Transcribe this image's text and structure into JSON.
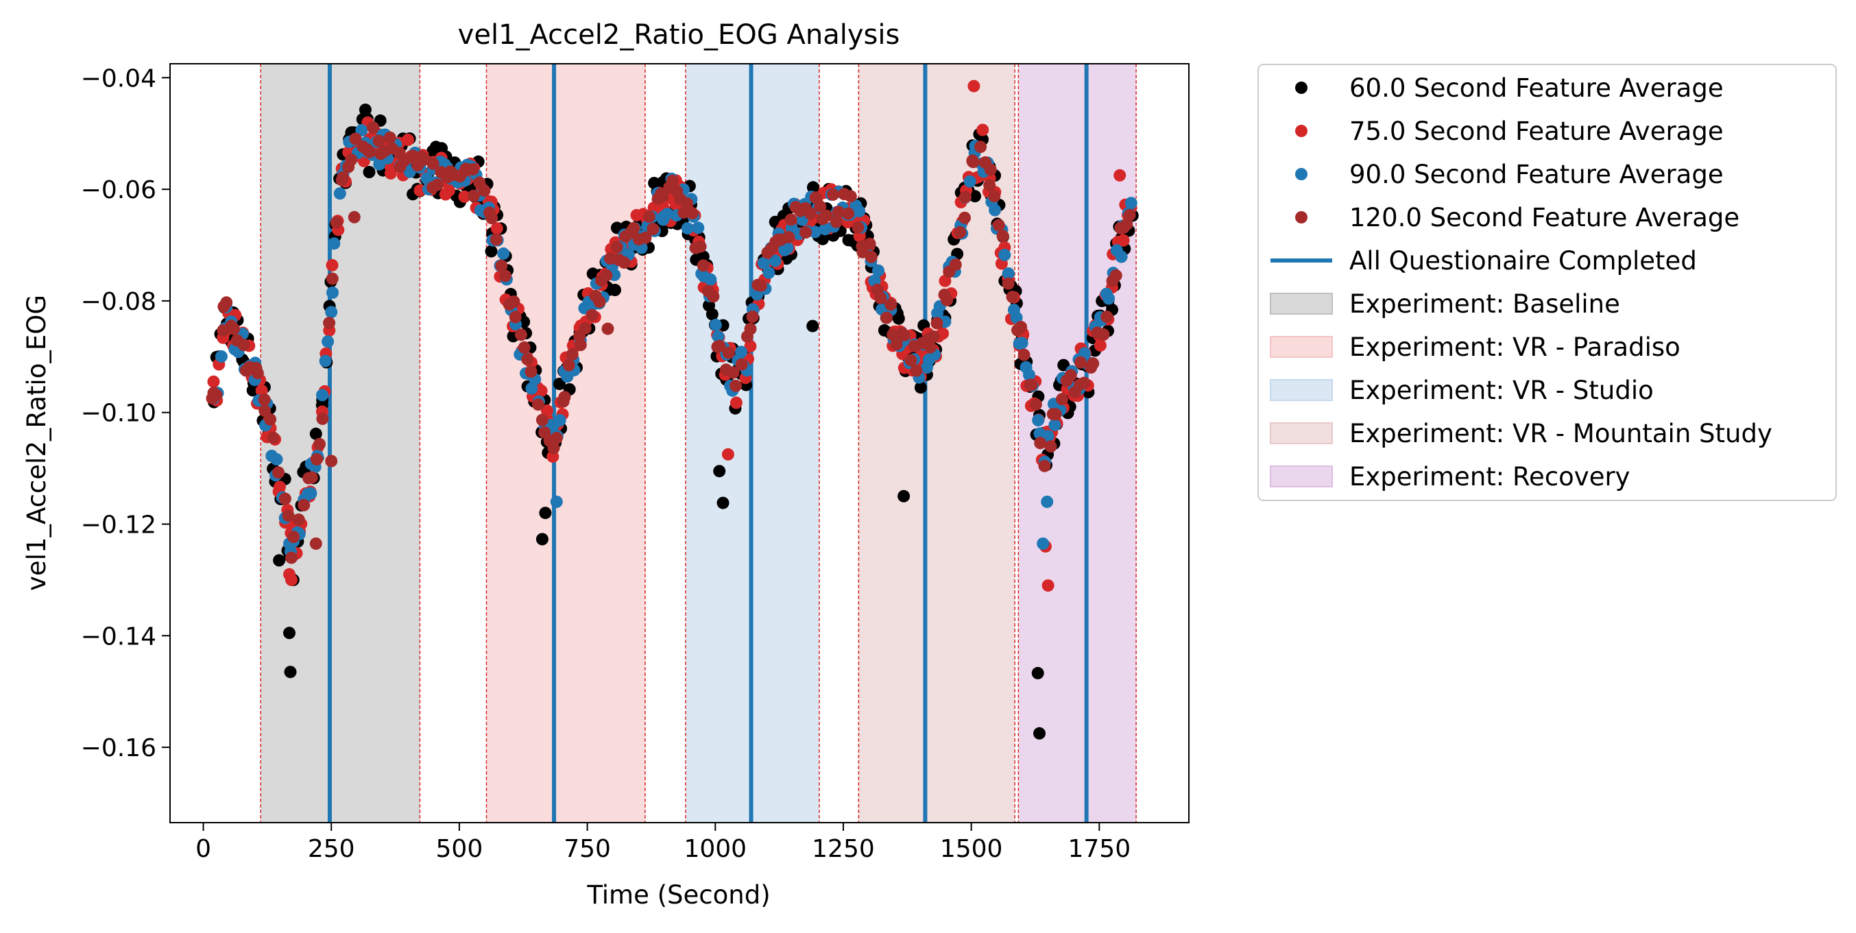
{
  "chart_data": {
    "type": "scatter",
    "title": "vel1_Accel2_Ratio_EOG Analysis",
    "xlabel": "Time (Second)",
    "ylabel": "vel1_Accel2_Ratio_EOG",
    "xlim": [
      -65,
      1925
    ],
    "ylim": [
      -0.1735,
      -0.0375
    ],
    "xticks": [
      0,
      250,
      500,
      750,
      1000,
      1250,
      1500,
      1750
    ],
    "yticks": [
      -0.04,
      -0.06,
      -0.08,
      -0.1,
      -0.12,
      -0.14,
      -0.16
    ],
    "ytick_labels": [
      "−0.04",
      "−0.06",
      "−0.08",
      "−0.10",
      "−0.12",
      "−0.14",
      "−0.16"
    ],
    "grid": false,
    "legend_position": "outside-right",
    "experiments": [
      {
        "label": "Experiment: Baseline",
        "start": 112,
        "end": 423,
        "color": "#bfbfbf"
      },
      {
        "label": "Experiment: VR - Paradiso",
        "start": 553,
        "end": 863,
        "color": "#f6c4c6"
      },
      {
        "label": "Experiment: VR - Studio",
        "start": 942,
        "end": 1203,
        "color": "#c3d9ec"
      },
      {
        "label": "Experiment: VR - Mountain Study",
        "start": 1280,
        "end": 1585,
        "color": "#e8c9c9"
      },
      {
        "label": "Experiment: Recovery",
        "start": 1592,
        "end": 1822,
        "color": "#ddbde1"
      }
    ],
    "questionnaire": {
      "label": "All Questionaire Completed",
      "color": "#1f77b4",
      "x": [
        247,
        685,
        1070,
        1410,
        1725
      ]
    },
    "series": [
      {
        "name": "60.0 Second Feature Average",
        "color": "#000000"
      },
      {
        "name": "75.0 Second Feature Average",
        "color": "#d62728"
      },
      {
        "name": "90.0 Second Feature Average",
        "color": "#1f77b4"
      },
      {
        "name": "120.0 Second Feature Average",
        "color": "#a52a2a"
      }
    ],
    "trend": [
      [
        25,
        -0.096
      ],
      [
        45,
        -0.082
      ],
      [
        70,
        -0.088
      ],
      [
        100,
        -0.093
      ],
      [
        130,
        -0.103
      ],
      [
        160,
        -0.117
      ],
      [
        175,
        -0.125
      ],
      [
        200,
        -0.112
      ],
      [
        225,
        -0.108
      ],
      [
        245,
        -0.085
      ],
      [
        260,
        -0.065
      ],
      [
        280,
        -0.055
      ],
      [
        310,
        -0.051
      ],
      [
        340,
        -0.052
      ],
      [
        380,
        -0.054
      ],
      [
        420,
        -0.056
      ],
      [
        460,
        -0.058
      ],
      [
        500,
        -0.057
      ],
      [
        540,
        -0.06
      ],
      [
        570,
        -0.068
      ],
      [
        600,
        -0.08
      ],
      [
        630,
        -0.09
      ],
      [
        660,
        -0.1
      ],
      [
        685,
        -0.105
      ],
      [
        700,
        -0.097
      ],
      [
        720,
        -0.09
      ],
      [
        760,
        -0.08
      ],
      [
        800,
        -0.073
      ],
      [
        850,
        -0.068
      ],
      [
        890,
        -0.063
      ],
      [
        920,
        -0.061
      ],
      [
        950,
        -0.064
      ],
      [
        980,
        -0.075
      ],
      [
        1010,
        -0.088
      ],
      [
        1040,
        -0.095
      ],
      [
        1060,
        -0.09
      ],
      [
        1080,
        -0.08
      ],
      [
        1110,
        -0.072
      ],
      [
        1150,
        -0.066
      ],
      [
        1200,
        -0.064
      ],
      [
        1240,
        -0.063
      ],
      [
        1270,
        -0.064
      ],
      [
        1300,
        -0.072
      ],
      [
        1330,
        -0.08
      ],
      [
        1360,
        -0.087
      ],
      [
        1390,
        -0.091
      ],
      [
        1420,
        -0.089
      ],
      [
        1450,
        -0.08
      ],
      [
        1480,
        -0.066
      ],
      [
        1500,
        -0.058
      ],
      [
        1520,
        -0.052
      ],
      [
        1545,
        -0.062
      ],
      [
        1575,
        -0.078
      ],
      [
        1600,
        -0.088
      ],
      [
        1625,
        -0.098
      ],
      [
        1645,
        -0.108
      ],
      [
        1670,
        -0.098
      ],
      [
        1700,
        -0.094
      ],
      [
        1730,
        -0.091
      ],
      [
        1760,
        -0.083
      ],
      [
        1790,
        -0.07
      ],
      [
        1815,
        -0.062
      ]
    ],
    "extra_points": [
      {
        "s": 0,
        "x": 170,
        "y": -0.1465
      },
      {
        "s": 0,
        "x": 168,
        "y": -0.1395
      },
      {
        "s": 0,
        "x": 148,
        "y": -0.1265
      },
      {
        "s": 0,
        "x": 175,
        "y": -0.12
      },
      {
        "s": 0,
        "x": 1633,
        "y": -0.1575
      },
      {
        "s": 0,
        "x": 1630,
        "y": -0.1467
      },
      {
        "s": 0,
        "x": 1015,
        "y": -0.1162
      },
      {
        "s": 0,
        "x": 1008,
        "y": -0.1105
      },
      {
        "s": 0,
        "x": 662,
        "y": -0.1227
      },
      {
        "s": 0,
        "x": 668,
        "y": -0.118
      },
      {
        "s": 0,
        "x": 1368,
        "y": -0.115
      },
      {
        "s": 0,
        "x": 1190,
        "y": -0.0845
      },
      {
        "s": 1,
        "x": 172,
        "y": -0.13
      },
      {
        "s": 1,
        "x": 168,
        "y": -0.129
      },
      {
        "s": 1,
        "x": 170,
        "y": -0.1195
      },
      {
        "s": 1,
        "x": 1650,
        "y": -0.131
      },
      {
        "s": 1,
        "x": 1645,
        "y": -0.124
      },
      {
        "s": 1,
        "x": 1505,
        "y": -0.0415
      },
      {
        "s": 1,
        "x": 1790,
        "y": -0.0575
      },
      {
        "s": 1,
        "x": 285,
        "y": -0.0515
      },
      {
        "s": 1,
        "x": 1025,
        "y": -0.1075
      },
      {
        "s": 2,
        "x": 168,
        "y": -0.1235
      },
      {
        "s": 2,
        "x": 210,
        "y": -0.1145
      },
      {
        "s": 2,
        "x": 250,
        "y": -0.082
      },
      {
        "s": 2,
        "x": 1648,
        "y": -0.116
      },
      {
        "s": 2,
        "x": 1640,
        "y": -0.1235
      },
      {
        "s": 2,
        "x": 690,
        "y": -0.116
      },
      {
        "s": 3,
        "x": 220,
        "y": -0.1235
      },
      {
        "s": 3,
        "x": 40,
        "y": -0.081
      },
      {
        "s": 3,
        "x": 20,
        "y": -0.0965
      },
      {
        "s": 3,
        "x": 295,
        "y": -0.065
      },
      {
        "s": 3,
        "x": 250,
        "y": -0.1087
      },
      {
        "s": 3,
        "x": 790,
        "y": -0.085
      }
    ]
  },
  "legend": {
    "items": [
      "60.0 Second Feature Average",
      "75.0 Second Feature Average",
      "90.0 Second Feature Average",
      "120.0 Second Feature Average",
      "All Questionaire Completed",
      "Experiment: Baseline",
      "Experiment: VR - Paradiso",
      "Experiment: VR - Studio",
      "Experiment: VR - Mountain Study",
      "Experiment: Recovery"
    ]
  }
}
